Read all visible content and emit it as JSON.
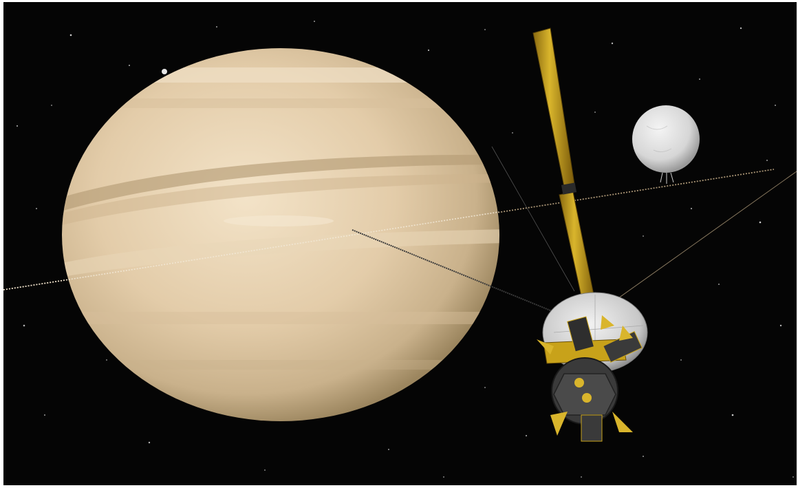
{
  "scene": {
    "description_colors": {
      "space": "#050505",
      "saturn_light": "#f0dcc0",
      "saturn_mid": "#dcc3a0",
      "saturn_band": "#b9a27d",
      "moon": "#e4e4e4",
      "ring_plane": "#c9b08a",
      "spacecraft_gold": "#c8a21a",
      "spacecraft_dark": "#3a3a3a",
      "dish": "#d9d9d9"
    },
    "icons": [
      "saturn-planet",
      "enceladus-moon",
      "cassini-spacecraft",
      "magnetometer-boom",
      "high-gain-antenna",
      "ring-plane-line",
      "distant-star"
    ]
  }
}
